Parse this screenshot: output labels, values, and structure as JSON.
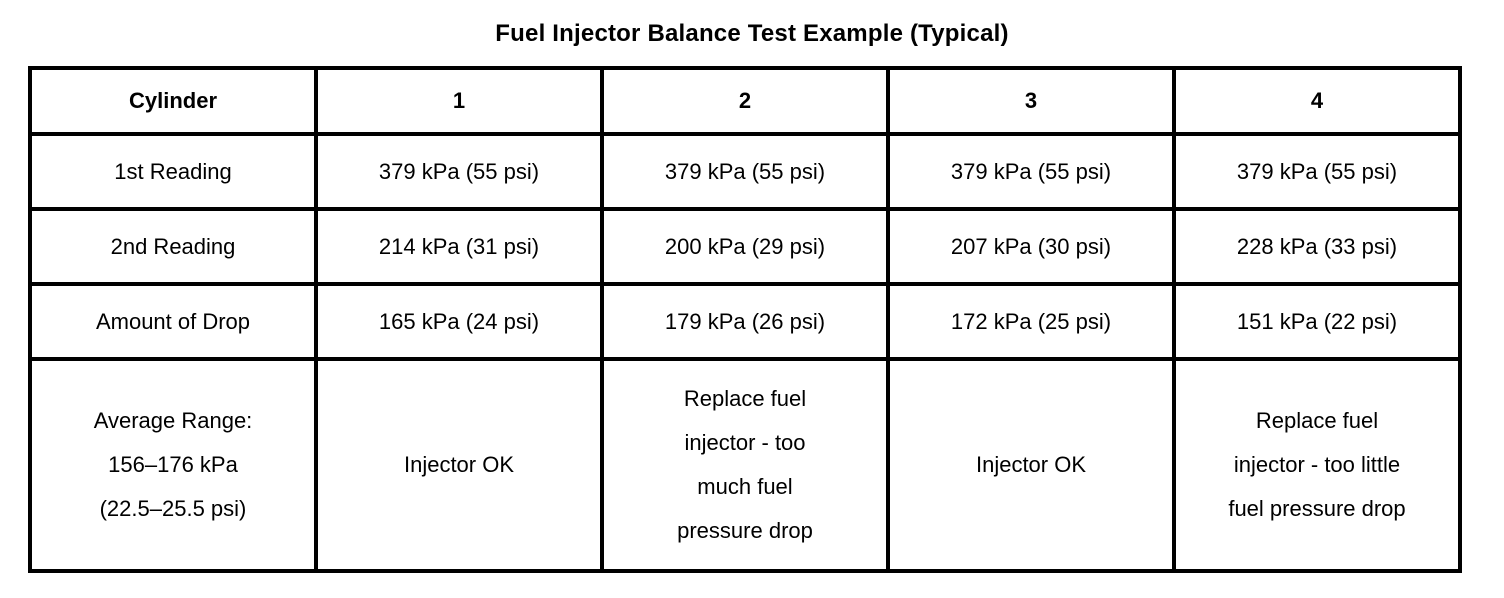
{
  "title": "Fuel Injector Balance Test Example (Typical)",
  "table": {
    "header": [
      "Cylinder",
      "1",
      "2",
      "3",
      "4"
    ],
    "rows": [
      {
        "label": "1st Reading",
        "values": [
          "379 kPa (55 psi)",
          "379 kPa (55 psi)",
          "379 kPa (55 psi)",
          "379 kPa (55 psi)"
        ]
      },
      {
        "label": "2nd Reading",
        "values": [
          "214 kPa (31 psi)",
          "200 kPa (29 psi)",
          "207 kPa (30 psi)",
          "228 kPa (33 psi)"
        ]
      },
      {
        "label": "Amount of Drop",
        "values": [
          "165 kPa (24 psi)",
          "179 kPa (26 psi)",
          "172 kPa (25 psi)",
          "151 kPa (22 psi)"
        ]
      },
      {
        "label": "Average Range:\n156–176 kPa\n(22.5–25.5 psi)",
        "values": [
          "Injector OK",
          "Replace fuel\ninjector - too\nmuch fuel\npressure drop",
          "Injector OK",
          "Replace fuel\ninjector - too little\nfuel pressure drop"
        ]
      }
    ]
  }
}
